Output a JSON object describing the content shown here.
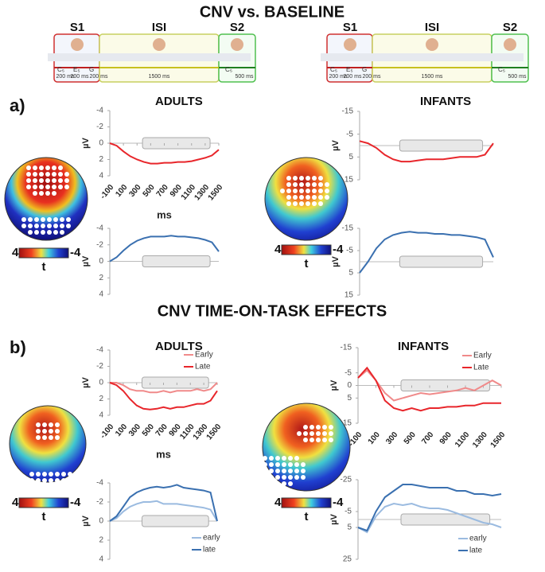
{
  "header": {
    "title_a": "CNV vs. BASELINE",
    "title_b": "CNV TIME-ON-TASK EFFECTS",
    "panel_a": "a)",
    "panel_b": "b)"
  },
  "schematic": {
    "s1": "S1",
    "isi": "ISI",
    "s2": "S2",
    "t1": "200 ms",
    "t2": "200 ms",
    "t3": "200 ms",
    "t_isi": "1500 ms",
    "t_s2": "500 ms",
    "notes": [
      "C₅",
      "E₅",
      "G",
      "C₅"
    ]
  },
  "colorbar": {
    "max": "4",
    "min": "-4",
    "label": "t"
  },
  "chart_data": [
    {
      "type": "line",
      "title": "ADULTS",
      "y_label": "µV",
      "x_label": "ms",
      "xlim": [
        -100,
        1500
      ],
      "xticks": [
        -100,
        100,
        300,
        500,
        700,
        900,
        1100,
        1300,
        1500
      ],
      "ylim": [
        4,
        -4
      ],
      "yticks": [
        -4,
        -2,
        0,
        2,
        4
      ],
      "x": [
        -100,
        0,
        100,
        200,
        300,
        400,
        500,
        600,
        700,
        800,
        900,
        1000,
        1100,
        1200,
        1300,
        1400,
        1500
      ],
      "series": [
        {
          "color": "#e8262b",
          "values": [
            0,
            0.3,
            1,
            1.6,
            2,
            2.3,
            2.5,
            2.5,
            2.4,
            2.4,
            2.3,
            2.3,
            2.2,
            2,
            1.8,
            1.5,
            0.8
          ]
        }
      ]
    },
    {
      "type": "line",
      "y_label": "µV",
      "xlim": [
        -100,
        1500
      ],
      "ylim": [
        4,
        -4
      ],
      "yticks": [
        -4,
        -2,
        0,
        2,
        4
      ],
      "x": [
        -100,
        0,
        100,
        200,
        300,
        400,
        500,
        600,
        700,
        800,
        900,
        1000,
        1100,
        1200,
        1300,
        1400,
        1500
      ],
      "series": [
        {
          "color": "#3a70b0",
          "values": [
            0,
            -0.5,
            -1.3,
            -2,
            -2.5,
            -2.8,
            -3,
            -3,
            -3,
            -3.1,
            -3,
            -3,
            -2.9,
            -2.8,
            -2.6,
            -2.3,
            -1.2
          ]
        }
      ]
    },
    {
      "type": "line",
      "title": "INFANTS",
      "y_label": "µV",
      "xlim": [
        -100,
        1500
      ],
      "ylim": [
        15,
        -15
      ],
      "yticks": [
        -15,
        -5,
        5,
        15
      ],
      "x": [
        -100,
        0,
        100,
        200,
        300,
        400,
        500,
        600,
        700,
        800,
        900,
        1000,
        1100,
        1200,
        1300,
        1400,
        1500
      ],
      "series": [
        {
          "color": "#e8262b",
          "values": [
            -2,
            -1,
            1,
            4,
            6,
            7,
            7,
            6.5,
            6,
            6,
            6,
            5.5,
            5,
            5,
            5,
            4,
            -1
          ]
        }
      ]
    },
    {
      "type": "line",
      "y_label": "µV",
      "xlim": [
        -100,
        1500
      ],
      "ylim": [
        15,
        -15
      ],
      "yticks": [
        -15,
        -5,
        5,
        15
      ],
      "x": [
        -100,
        0,
        100,
        200,
        300,
        400,
        500,
        600,
        700,
        800,
        900,
        1000,
        1100,
        1200,
        1300,
        1400,
        1500
      ],
      "series": [
        {
          "color": "#3a70b0",
          "values": [
            5,
            0,
            -6,
            -10,
            -12,
            -13,
            -13.5,
            -13,
            -13,
            -12.5,
            -12.5,
            -12,
            -12,
            -11.5,
            -11,
            -10,
            -2
          ]
        }
      ]
    },
    {
      "type": "line",
      "title": "ADULTS",
      "y_label": "µV",
      "x_label": "ms",
      "xlim": [
        -100,
        1500
      ],
      "xticks": [
        -100,
        100,
        300,
        500,
        700,
        900,
        1100,
        1300,
        1500
      ],
      "ylim": [
        4,
        -4
      ],
      "yticks": [
        -4,
        -2,
        0,
        2,
        4
      ],
      "x": [
        -100,
        0,
        100,
        200,
        300,
        400,
        500,
        600,
        700,
        800,
        900,
        1000,
        1100,
        1200,
        1300,
        1400,
        1500
      ],
      "series": [
        {
          "name": "Early",
          "color": "#f08a8a",
          "values": [
            0,
            0,
            0.3,
            0.8,
            1,
            1,
            1.2,
            1.2,
            1,
            1.2,
            1,
            1,
            1,
            0.8,
            1,
            0.8,
            0
          ]
        },
        {
          "name": "Late",
          "color": "#e8262b",
          "values": [
            0,
            0.3,
            1,
            2,
            2.8,
            3.2,
            3.3,
            3.2,
            3,
            3.2,
            3,
            3,
            2.8,
            2.6,
            2.6,
            2.2,
            1
          ]
        }
      ]
    },
    {
      "type": "line",
      "y_label": "µV",
      "xlim": [
        -100,
        1500
      ],
      "ylim": [
        4,
        -4
      ],
      "yticks": [
        -4,
        -2,
        0,
        2,
        4
      ],
      "x": [
        -100,
        0,
        100,
        200,
        300,
        400,
        500,
        600,
        700,
        800,
        900,
        1000,
        1100,
        1200,
        1300,
        1400,
        1500
      ],
      "series": [
        {
          "name": "early",
          "color": "#9bbbe0",
          "values": [
            0,
            -0.3,
            -1,
            -1.5,
            -1.8,
            -2,
            -2,
            -2.1,
            -1.8,
            -1.8,
            -1.8,
            -1.7,
            -1.6,
            -1.5,
            -1.4,
            -1.2,
            0
          ]
        },
        {
          "name": "late",
          "color": "#3a70b0",
          "values": [
            0,
            -0.5,
            -1.5,
            -2.5,
            -3,
            -3.3,
            -3.5,
            -3.6,
            -3.5,
            -3.6,
            -3.8,
            -3.5,
            -3.4,
            -3.3,
            -3.2,
            -3,
            0
          ]
        }
      ]
    },
    {
      "type": "line",
      "title": "INFANTS",
      "y_label": "µV",
      "xlim": [
        -100,
        1500
      ],
      "xticks": [
        -100,
        100,
        300,
        500,
        700,
        900,
        1100,
        1300,
        1500
      ],
      "ylim": [
        15,
        -15
      ],
      "yticks": [
        -15,
        -5,
        0,
        5,
        15
      ],
      "x": [
        -100,
        0,
        100,
        200,
        300,
        400,
        500,
        600,
        700,
        800,
        900,
        1000,
        1100,
        1200,
        1300,
        1400,
        1500
      ],
      "series": [
        {
          "name": "Early",
          "color": "#f08a8a",
          "values": [
            -3,
            -6,
            -2,
            3,
            6,
            5,
            4,
            3,
            3.5,
            3,
            2.5,
            2,
            1,
            2,
            0,
            -2,
            0
          ]
        },
        {
          "name": "Late",
          "color": "#e8262b",
          "values": [
            -3,
            -7,
            -2,
            6,
            9,
            10,
            9,
            10,
            9,
            9,
            8.5,
            8.5,
            8,
            8,
            7,
            7,
            7
          ]
        }
      ]
    },
    {
      "type": "line",
      "y_label": "µV",
      "xlim": [
        -100,
        1500
      ],
      "ylim": [
        25,
        -25
      ],
      "yticks": [
        -25,
        -5,
        5,
        25
      ],
      "x": [
        -100,
        0,
        100,
        200,
        300,
        400,
        500,
        600,
        700,
        800,
        900,
        1000,
        1100,
        1200,
        1300,
        1400,
        1500
      ],
      "series": [
        {
          "name": "early",
          "color": "#9bbbe0",
          "values": [
            5,
            8,
            -2,
            -8,
            -10,
            -9,
            -10,
            -8,
            -7,
            -7,
            -6,
            -4,
            -2,
            0,
            2,
            3,
            5
          ]
        },
        {
          "name": "late",
          "color": "#3a70b0",
          "values": [
            5,
            7,
            -5,
            -14,
            -18,
            -22,
            -22,
            -21,
            -20,
            -20,
            -20,
            -18,
            -18,
            -16,
            -16,
            -15,
            -16
          ]
        }
      ]
    }
  ]
}
